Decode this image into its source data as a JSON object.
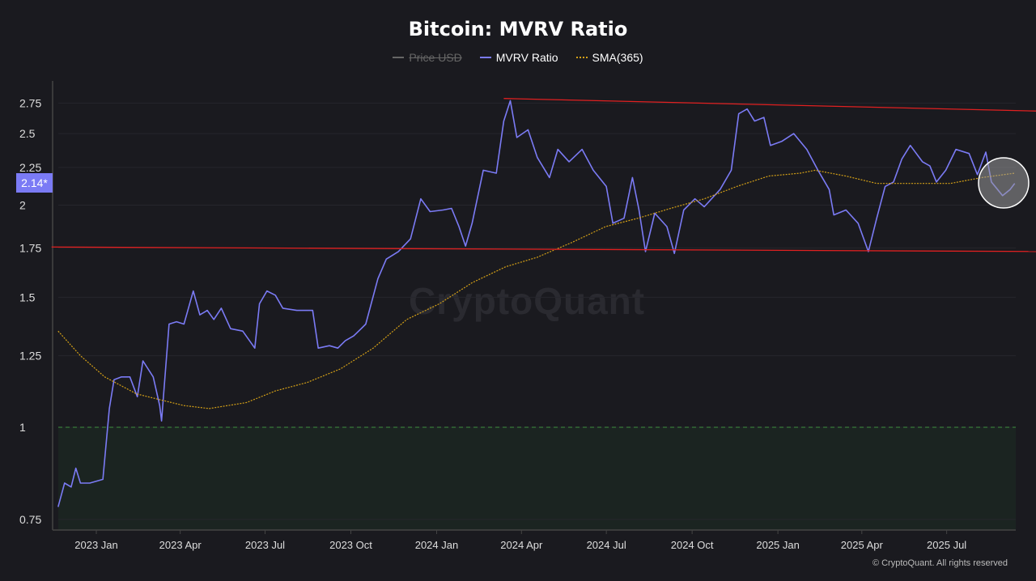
{
  "chart_data": {
    "type": "line",
    "title": "Bitcoin: MVRV Ratio",
    "y_scale": "log",
    "ylim": [
      0.72,
      2.95
    ],
    "y_ticks": [
      0.75,
      1,
      1.25,
      1.5,
      1.75,
      2,
      2.25,
      2.5,
      2.75
    ],
    "y_tick_labels": [
      "0.75",
      "1",
      "1.25",
      "1.5",
      "1.75",
      "2",
      "2.25",
      "2.5",
      "2.75"
    ],
    "x_ticks": [
      "2023-01-01",
      "2023-04-01",
      "2023-07-01",
      "2023-10-01",
      "2024-01-01",
      "2024-04-01",
      "2024-07-01",
      "2024-10-01",
      "2025-01-01",
      "2025-04-01",
      "2025-07-01"
    ],
    "x_tick_labels": [
      "2023 Jan",
      "2023 Apr",
      "2023 Jul",
      "2023 Oct",
      "2024 Jan",
      "2024 Apr",
      "2024 Jul",
      "2024 Oct",
      "2025 Jan",
      "2025 Apr",
      "2025 Jul"
    ],
    "grid": true,
    "legend_position": "top-center",
    "legend": [
      {
        "name": "Price USD",
        "color": "#888888",
        "hidden": true
      },
      {
        "name": "MVRV Ratio",
        "color": "#7b7bf5",
        "hidden": false
      },
      {
        "name": "SMA(365)",
        "color": "#d4a017",
        "hidden": false
      }
    ],
    "current_value_label": "2.14*",
    "series": [
      {
        "name": "MVRV Ratio",
        "color": "#7b7bf5",
        "points": [
          [
            "2022-11-21",
            0.78
          ],
          [
            "2022-11-28",
            0.84
          ],
          [
            "2022-12-05",
            0.83
          ],
          [
            "2022-12-10",
            0.88
          ],
          [
            "2022-12-15",
            0.84
          ],
          [
            "2022-12-25",
            0.84
          ],
          [
            "2023-01-08",
            0.85
          ],
          [
            "2023-01-15",
            1.06
          ],
          [
            "2023-01-20",
            1.16
          ],
          [
            "2023-01-28",
            1.17
          ],
          [
            "2023-02-06",
            1.17
          ],
          [
            "2023-02-14",
            1.1
          ],
          [
            "2023-02-20",
            1.23
          ],
          [
            "2023-03-03",
            1.17
          ],
          [
            "2023-03-10",
            1.07
          ],
          [
            "2023-03-12",
            1.02
          ],
          [
            "2023-03-20",
            1.38
          ],
          [
            "2023-03-28",
            1.39
          ],
          [
            "2023-04-05",
            1.38
          ],
          [
            "2023-04-15",
            1.53
          ],
          [
            "2023-04-22",
            1.42
          ],
          [
            "2023-04-30",
            1.44
          ],
          [
            "2023-05-07",
            1.4
          ],
          [
            "2023-05-15",
            1.45
          ],
          [
            "2023-05-25",
            1.36
          ],
          [
            "2023-06-07",
            1.35
          ],
          [
            "2023-06-20",
            1.28
          ],
          [
            "2023-06-25",
            1.47
          ],
          [
            "2023-07-03",
            1.53
          ],
          [
            "2023-07-12",
            1.51
          ],
          [
            "2023-07-20",
            1.45
          ],
          [
            "2023-08-04",
            1.44
          ],
          [
            "2023-08-21",
            1.44
          ],
          [
            "2023-08-27",
            1.28
          ],
          [
            "2023-09-08",
            1.29
          ],
          [
            "2023-09-17",
            1.28
          ],
          [
            "2023-09-25",
            1.31
          ],
          [
            "2023-10-04",
            1.33
          ],
          [
            "2023-10-12",
            1.36
          ],
          [
            "2023-10-17",
            1.38
          ],
          [
            "2023-10-30",
            1.59
          ],
          [
            "2023-11-08",
            1.69
          ],
          [
            "2023-11-21",
            1.73
          ],
          [
            "2023-12-04",
            1.8
          ],
          [
            "2023-12-15",
            2.04
          ],
          [
            "2023-12-25",
            1.96
          ],
          [
            "2024-01-08",
            1.97
          ],
          [
            "2024-01-17",
            1.98
          ],
          [
            "2024-01-25",
            1.87
          ],
          [
            "2024-02-01",
            1.76
          ],
          [
            "2024-02-08",
            1.89
          ],
          [
            "2024-02-20",
            2.23
          ],
          [
            "2024-03-05",
            2.21
          ],
          [
            "2024-03-13",
            2.6
          ],
          [
            "2024-03-20",
            2.77
          ],
          [
            "2024-03-27",
            2.47
          ],
          [
            "2024-04-08",
            2.53
          ],
          [
            "2024-04-18",
            2.32
          ],
          [
            "2024-05-01",
            2.18
          ],
          [
            "2024-05-10",
            2.38
          ],
          [
            "2024-05-22",
            2.29
          ],
          [
            "2024-06-05",
            2.38
          ],
          [
            "2024-06-17",
            2.23
          ],
          [
            "2024-07-01",
            2.12
          ],
          [
            "2024-07-08",
            1.89
          ],
          [
            "2024-07-20",
            1.92
          ],
          [
            "2024-07-29",
            2.18
          ],
          [
            "2024-08-05",
            1.97
          ],
          [
            "2024-08-12",
            1.73
          ],
          [
            "2024-08-22",
            1.95
          ],
          [
            "2024-09-04",
            1.87
          ],
          [
            "2024-09-12",
            1.72
          ],
          [
            "2024-09-22",
            1.97
          ],
          [
            "2024-10-04",
            2.04
          ],
          [
            "2024-10-14",
            1.99
          ],
          [
            "2024-10-31",
            2.1
          ],
          [
            "2024-11-12",
            2.23
          ],
          [
            "2024-11-20",
            2.66
          ],
          [
            "2024-11-29",
            2.7
          ],
          [
            "2024-12-07",
            2.6
          ],
          [
            "2024-12-17",
            2.63
          ],
          [
            "2024-12-24",
            2.41
          ],
          [
            "2025-01-05",
            2.44
          ],
          [
            "2025-01-18",
            2.5
          ],
          [
            "2025-02-01",
            2.38
          ],
          [
            "2025-02-13",
            2.23
          ],
          [
            "2025-02-25",
            2.1
          ],
          [
            "2025-03-02",
            1.94
          ],
          [
            "2025-03-15",
            1.97
          ],
          [
            "2025-03-28",
            1.89
          ],
          [
            "2025-04-08",
            1.73
          ],
          [
            "2025-04-17",
            1.92
          ],
          [
            "2025-04-26",
            2.12
          ],
          [
            "2025-05-05",
            2.15
          ],
          [
            "2025-05-14",
            2.31
          ],
          [
            "2025-05-23",
            2.41
          ],
          [
            "2025-06-05",
            2.29
          ],
          [
            "2025-06-13",
            2.26
          ],
          [
            "2025-06-20",
            2.15
          ],
          [
            "2025-06-30",
            2.23
          ],
          [
            "2025-07-11",
            2.38
          ],
          [
            "2025-07-25",
            2.35
          ],
          [
            "2025-08-03",
            2.2
          ],
          [
            "2025-08-12",
            2.36
          ],
          [
            "2025-08-18",
            2.15
          ],
          [
            "2025-08-30",
            2.06
          ],
          [
            "2025-09-07",
            2.1
          ],
          [
            "2025-09-12",
            2.14
          ]
        ]
      },
      {
        "name": "SMA(365)",
        "color": "#d4a017",
        "points": [
          [
            "2022-11-21",
            1.35
          ],
          [
            "2022-12-15",
            1.25
          ],
          [
            "2023-01-10",
            1.17
          ],
          [
            "2023-02-13",
            1.11
          ],
          [
            "2023-03-10",
            1.09
          ],
          [
            "2023-04-05",
            1.07
          ],
          [
            "2023-05-02",
            1.06
          ],
          [
            "2023-06-11",
            1.08
          ],
          [
            "2023-07-12",
            1.12
          ],
          [
            "2023-08-15",
            1.15
          ],
          [
            "2023-09-20",
            1.2
          ],
          [
            "2023-10-25",
            1.28
          ],
          [
            "2023-11-30",
            1.4
          ],
          [
            "2024-01-04",
            1.47
          ],
          [
            "2024-02-08",
            1.57
          ],
          [
            "2024-03-15",
            1.65
          ],
          [
            "2024-04-18",
            1.7
          ],
          [
            "2024-05-25",
            1.78
          ],
          [
            "2024-06-30",
            1.87
          ],
          [
            "2024-08-04",
            1.92
          ],
          [
            "2024-09-08",
            1.98
          ],
          [
            "2024-10-14",
            2.04
          ],
          [
            "2024-11-18",
            2.12
          ],
          [
            "2024-12-22",
            2.19
          ],
          [
            "2025-01-25",
            2.21
          ],
          [
            "2025-02-10",
            2.23
          ],
          [
            "2025-03-15",
            2.19
          ],
          [
            "2025-04-17",
            2.14
          ],
          [
            "2025-05-23",
            2.14
          ],
          [
            "2025-07-05",
            2.14
          ],
          [
            "2025-08-08",
            2.18
          ],
          [
            "2025-09-12",
            2.21
          ]
        ]
      }
    ],
    "reference_lines": [
      {
        "value": 1,
        "style": "dashed",
        "color": "#3f8f3f",
        "zone_below_color": "#1b2421"
      }
    ],
    "trendlines": [
      {
        "color": "#e02020",
        "from": [
          "2024-03-13",
          2.79
        ],
        "to": [
          "2025-10-20",
          2.68
        ],
        "arrow": true
      },
      {
        "color": "#e02020",
        "from": [
          "2022-11-14",
          1.755
        ],
        "to": [
          "2025-10-30",
          1.73
        ],
        "arrow": false
      }
    ],
    "highlight_color": "#9a9a9a"
  },
  "watermark": "CryptoQuant",
  "copyright": "© CryptoQuant. All rights reserved"
}
